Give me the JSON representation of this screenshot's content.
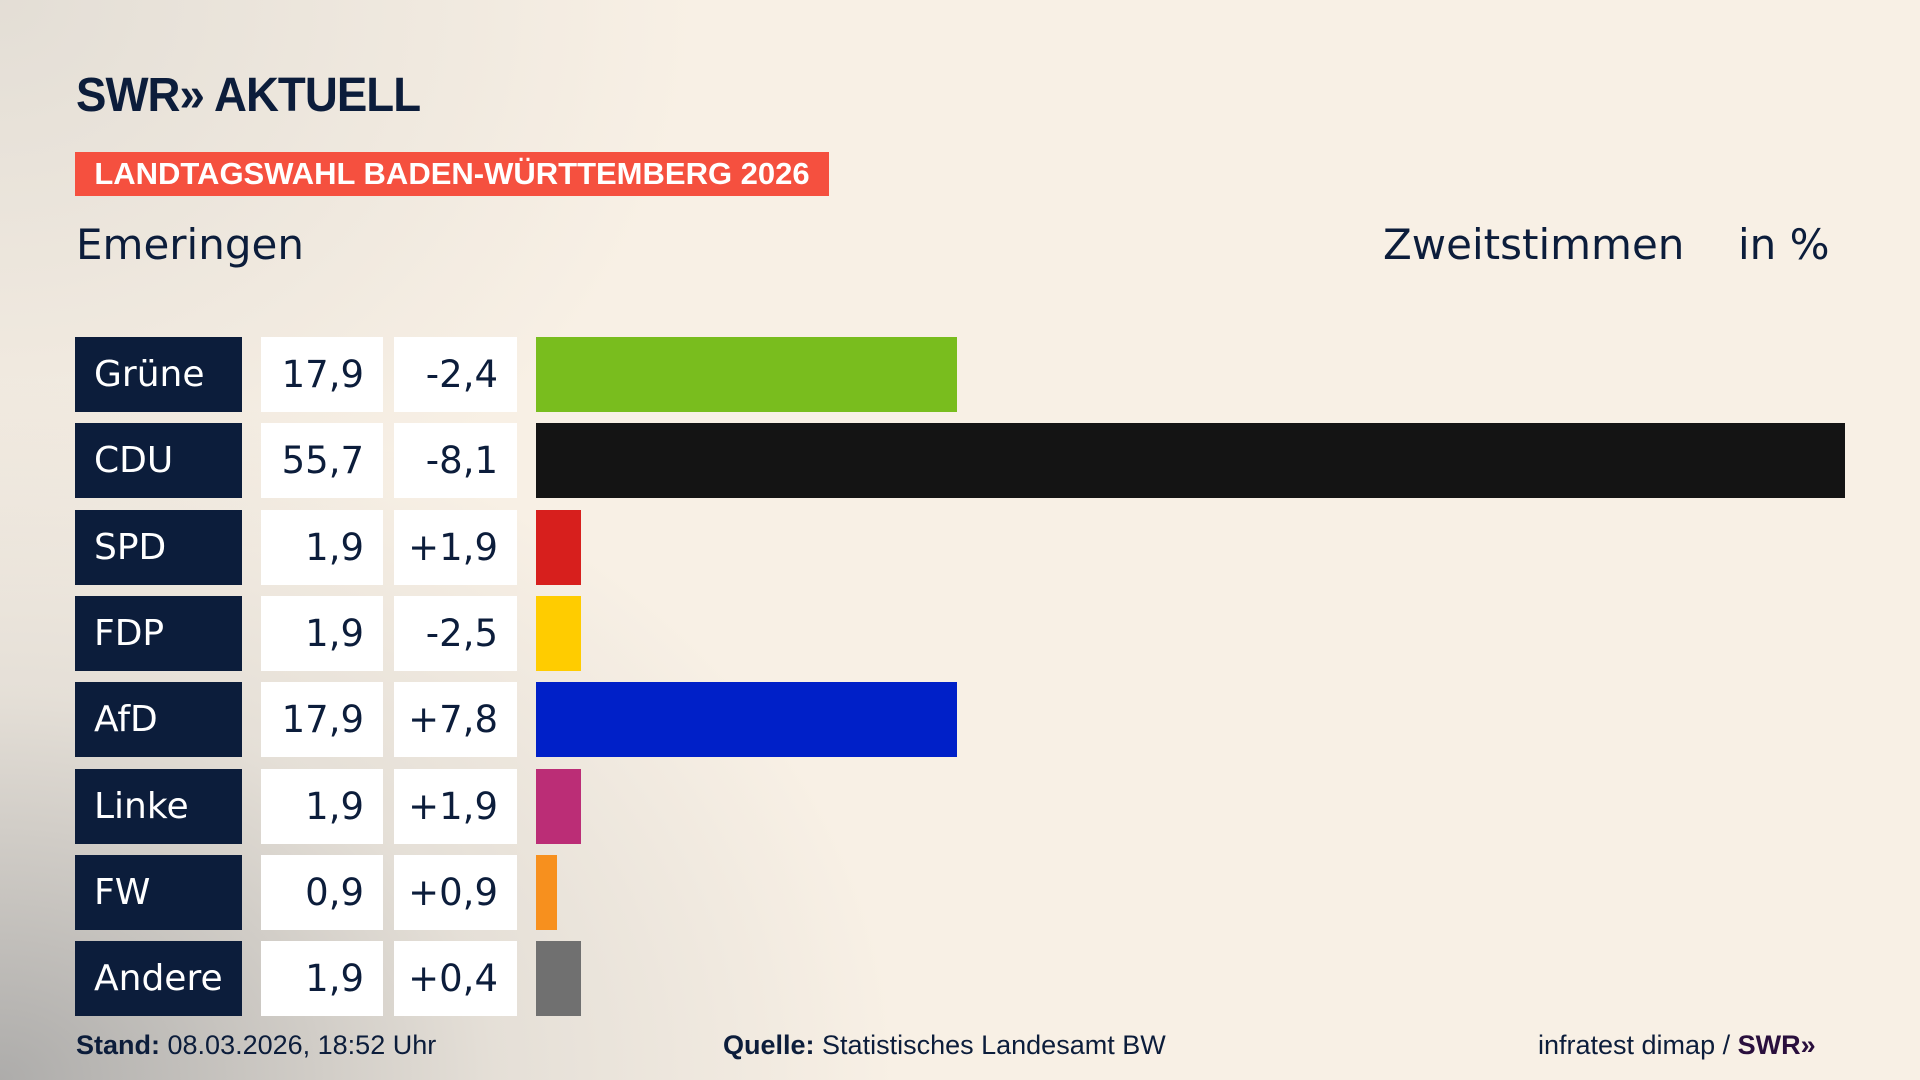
{
  "header": {
    "logo": "SWR» AKTUELL",
    "banner": "LANDTAGSWAHL BADEN-WÜRTTEMBERG 2026",
    "place": "Emeringen",
    "metric": "Zweitstimmen",
    "unit": "in %"
  },
  "chart_data": {
    "type": "bar",
    "orientation": "horizontal",
    "title": "Emeringen – Zweitstimmen in %",
    "categories": [
      "Grüne",
      "CDU",
      "SPD",
      "FDP",
      "AfD",
      "Linke",
      "FW",
      "Andere"
    ],
    "values": [
      17.9,
      55.7,
      1.9,
      1.9,
      17.9,
      1.9,
      0.9,
      1.9
    ],
    "value_labels": [
      "17,9",
      "55,7",
      "1,9",
      "1,9",
      "17,9",
      "1,9",
      "0,9",
      "1,9"
    ],
    "changes": [
      -2.4,
      -8.1,
      1.9,
      -2.5,
      7.8,
      1.9,
      0.9,
      0.4
    ],
    "change_labels": [
      "-2,4",
      "-8,1",
      "+1,9",
      "-2,5",
      "+7,8",
      "+1,9",
      "+0,9",
      "+0,4"
    ],
    "colors": [
      "#79bd1e",
      "#141414",
      "#d71f1d",
      "#ffcc00",
      "#0020c8",
      "#bb2d76",
      "#f7901e",
      "#707070"
    ],
    "xlim": [
      0,
      55.7
    ]
  },
  "footer": {
    "stand_label": "Stand:",
    "stand_value": "08.03.2026, 18:52 Uhr",
    "source_label": "Quelle:",
    "source_value": "Statistisches Landesamt BW",
    "credit": "infratest dimap /",
    "credit_logo": "SWR»"
  }
}
